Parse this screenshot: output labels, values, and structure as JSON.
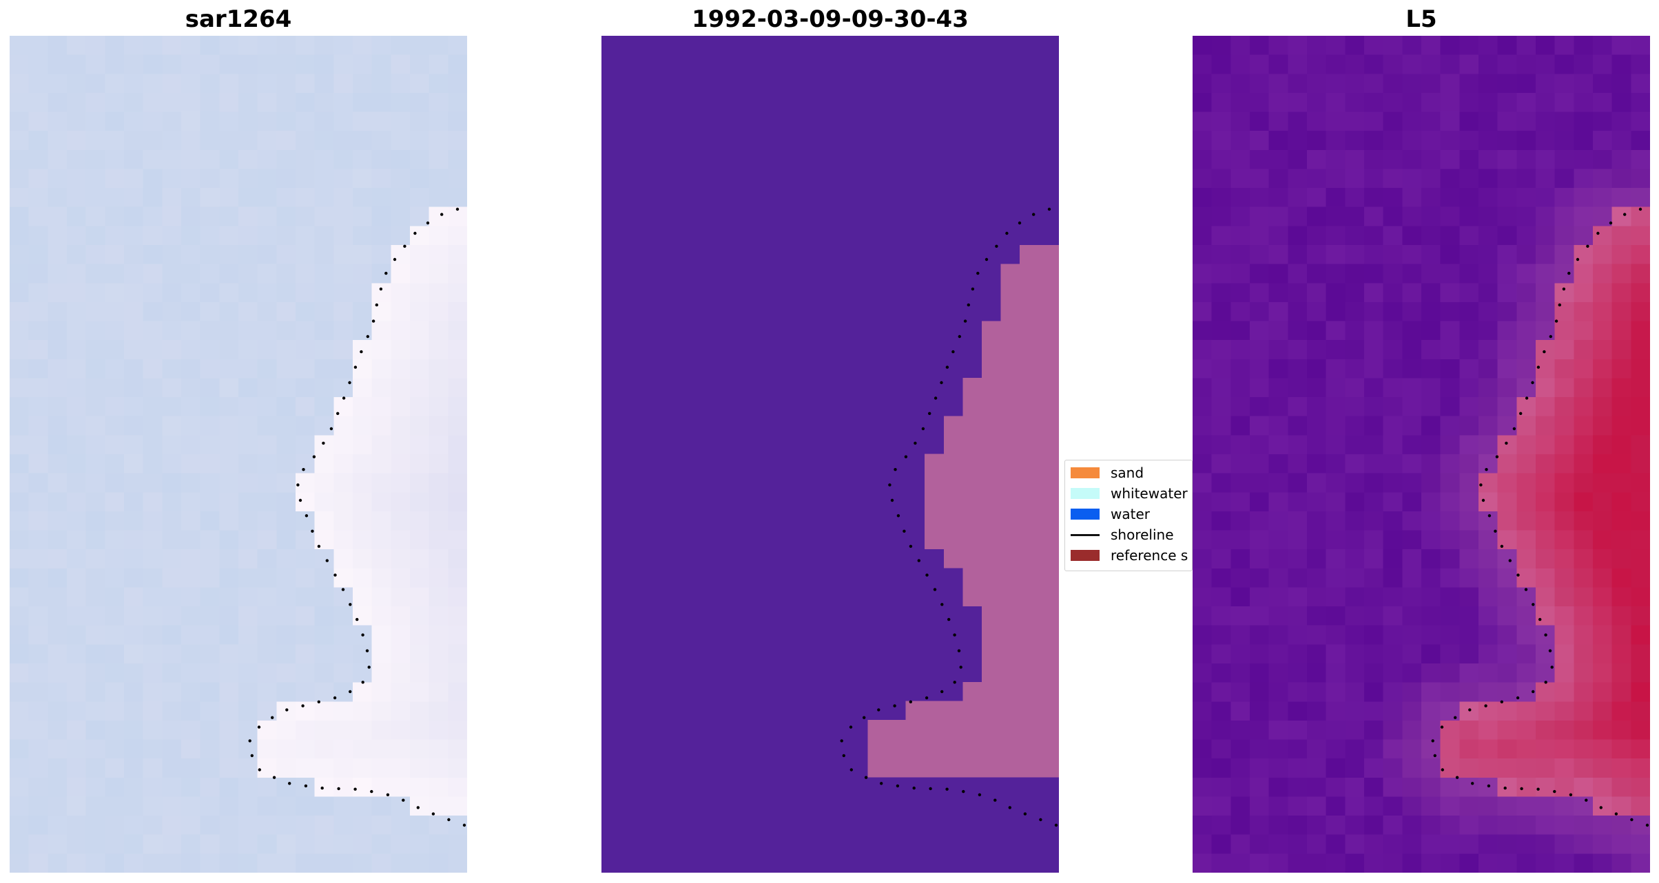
{
  "panels": [
    {
      "title": "sar1264",
      "kind": "rgb"
    },
    {
      "title": "1992-03-09-09-30-43",
      "kind": "classification"
    },
    {
      "title": "L5",
      "kind": "index"
    }
  ],
  "colors": {
    "classified_water": "#54229a",
    "classified_land": "#b2619c",
    "shoreline_dots": "#000000"
  },
  "legend": {
    "items": [
      {
        "label": "sand",
        "color": "#f58a3c",
        "kind": "patch"
      },
      {
        "label": "whitewater",
        "color": "#c5fbf9",
        "kind": "patch"
      },
      {
        "label": "water",
        "color": "#0a5ef0",
        "kind": "patch"
      },
      {
        "label": "shoreline",
        "color": "#000000",
        "kind": "line"
      },
      {
        "label": "reference s",
        "color": "#9a2c2c",
        "kind": "patch"
      }
    ]
  }
}
